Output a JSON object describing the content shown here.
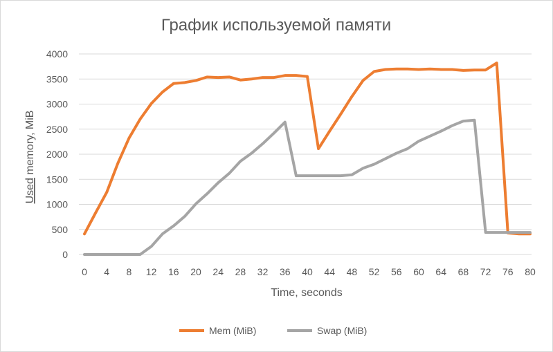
{
  "chart_data": {
    "type": "line",
    "title": "График используемой памяти",
    "xlabel": "Time, seconds",
    "ylabel": "Used memory, MiB",
    "ylabel_underlined_word": "Used",
    "ylabel_rest": " memory, MiB",
    "xlim": [
      0,
      80
    ],
    "ylim": [
      0,
      4000
    ],
    "x_ticks": [
      "0",
      "4",
      "8",
      "12",
      "16",
      "20",
      "24",
      "28",
      "32",
      "36",
      "40",
      "44",
      "48",
      "52",
      "56",
      "60",
      "64",
      "68",
      "72",
      "76",
      "80"
    ],
    "y_ticks": [
      "0",
      "500",
      "1000",
      "1500",
      "2000",
      "2500",
      "3000",
      "3500",
      "4000"
    ],
    "grid": true,
    "legend_position": "bottom",
    "series": [
      {
        "name": "Mem (MiB)",
        "color": "#ED7D31",
        "x": [
          0,
          2,
          4,
          6,
          8,
          10,
          12,
          14,
          16,
          18,
          20,
          22,
          24,
          26,
          28,
          30,
          32,
          34,
          36,
          38,
          40,
          42,
          44,
          46,
          48,
          50,
          52,
          54,
          56,
          58,
          60,
          62,
          64,
          66,
          68,
          70,
          72,
          74,
          76,
          78,
          80
        ],
        "values": [
          410,
          830,
          1240,
          1820,
          2320,
          2700,
          3010,
          3240,
          3410,
          3430,
          3470,
          3540,
          3530,
          3540,
          3480,
          3500,
          3530,
          3530,
          3570,
          3570,
          3550,
          2110,
          2460,
          2800,
          3150,
          3470,
          3650,
          3690,
          3700,
          3700,
          3690,
          3700,
          3690,
          3690,
          3670,
          3680,
          3680,
          3820,
          430,
          410,
          410
        ]
      },
      {
        "name": "Swap (MiB)",
        "color": "#A5A5A5",
        "x": [
          0,
          2,
          4,
          6,
          8,
          10,
          12,
          14,
          16,
          18,
          20,
          22,
          24,
          26,
          28,
          30,
          32,
          34,
          36,
          38,
          40,
          42,
          44,
          46,
          48,
          50,
          52,
          54,
          56,
          58,
          60,
          62,
          64,
          66,
          68,
          70,
          72,
          74,
          76,
          78,
          80
        ],
        "values": [
          0,
          0,
          0,
          0,
          0,
          0,
          160,
          410,
          570,
          760,
          1010,
          1210,
          1430,
          1620,
          1860,
          2020,
          2210,
          2420,
          2640,
          1570,
          1570,
          1570,
          1570,
          1570,
          1590,
          1720,
          1800,
          1910,
          2020,
          2110,
          2260,
          2360,
          2460,
          2570,
          2660,
          2680,
          440,
          440,
          440,
          440,
          440
        ]
      }
    ]
  }
}
